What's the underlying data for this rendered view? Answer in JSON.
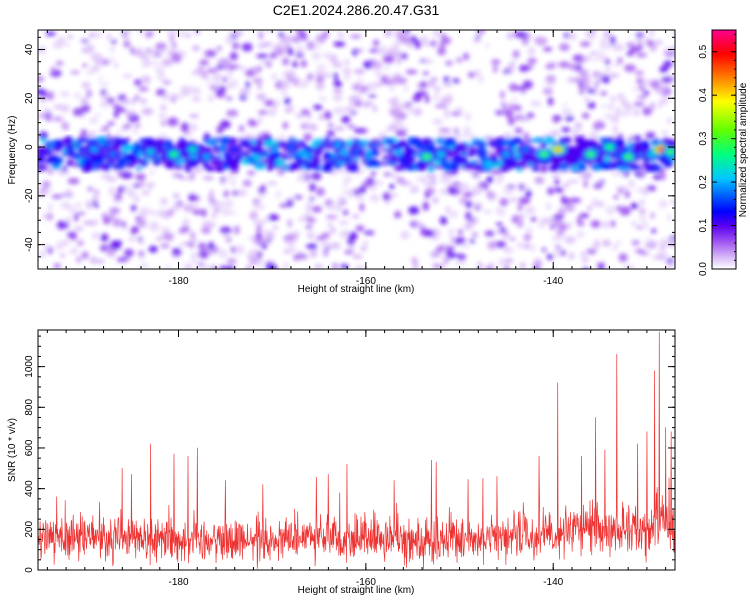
{
  "title": "C2E1.2024.286.20.47.G31",
  "chart_data": [
    {
      "type": "heatmap",
      "xlabel": "Height of straight line (km)",
      "ylabel": "Frequency (Hz)",
      "xlim": [
        -195,
        -127
      ],
      "ylim": [
        -50,
        48
      ],
      "xticks": [
        -180,
        -160,
        -140
      ],
      "yticks": [
        -40,
        -20,
        0,
        20,
        40
      ],
      "colorbar": {
        "label": "Normalized spectral amplitude",
        "range": [
          0.0,
          0.55
        ],
        "ticks": [
          0.0,
          0.1,
          0.2,
          0.3,
          0.4,
          0.5
        ],
        "colors": [
          "#ffffff",
          "#d8b8f8",
          "#9a4cf0",
          "#5a00f0",
          "#0000ff",
          "#00c8ff",
          "#00ff80",
          "#60ff00",
          "#ffff00",
          "#ff8000",
          "#ff0000",
          "#ff0090"
        ]
      },
      "band": {
        "center_hz": -3,
        "half_width_hz": 6
      },
      "hotspots": [
        {
          "x": -189,
          "y": -1,
          "amp": 0.2
        },
        {
          "x": -187,
          "y": -3,
          "amp": 0.18
        },
        {
          "x": -183,
          "y": -2,
          "amp": 0.22
        },
        {
          "x": -180.5,
          "y": -3,
          "amp": 0.28
        },
        {
          "x": -178.5,
          "y": -1,
          "amp": 0.24
        },
        {
          "x": -177,
          "y": -4,
          "amp": 0.2
        },
        {
          "x": -174,
          "y": -1,
          "amp": 0.15
        },
        {
          "x": -168,
          "y": 0,
          "amp": 0.17
        },
        {
          "x": -163,
          "y": 1,
          "amp": 0.2
        },
        {
          "x": -161,
          "y": -2,
          "amp": 0.17
        },
        {
          "x": -153.5,
          "y": -4,
          "amp": 0.3
        },
        {
          "x": -152,
          "y": -3,
          "amp": 0.22
        },
        {
          "x": -145,
          "y": -3,
          "amp": 0.2
        },
        {
          "x": -143,
          "y": -1,
          "amp": 0.18
        },
        {
          "x": -141,
          "y": -3,
          "amp": 0.3
        },
        {
          "x": -139.5,
          "y": -1,
          "amp": 0.42
        },
        {
          "x": -136,
          "y": -3,
          "amp": 0.3
        },
        {
          "x": -134,
          "y": 0,
          "amp": 0.28
        },
        {
          "x": -132,
          "y": -4,
          "amp": 0.3
        },
        {
          "x": -129.5,
          "y": -3,
          "amp": 0.22
        },
        {
          "x": -128.5,
          "y": -1,
          "amp": 0.5
        },
        {
          "x": -127.5,
          "y": -2,
          "amp": 0.3
        }
      ]
    },
    {
      "type": "line",
      "xlabel": "Height of straight line (km)",
      "ylabel": "SNR (10 * v/v)",
      "xlim": [
        -195,
        -127
      ],
      "ylim": [
        0,
        1180
      ],
      "xticks": [
        -180,
        -160,
        -140
      ],
      "yticks": [
        0,
        200,
        400,
        600,
        800,
        1000
      ],
      "color": "#ee3333",
      "baseline": 150,
      "noise": 100,
      "spikes": [
        {
          "x": -193,
          "y": 360
        },
        {
          "x": -186,
          "y": 500
        },
        {
          "x": -185,
          "y": 470
        },
        {
          "x": -183,
          "y": 620
        },
        {
          "x": -180.5,
          "y": 570
        },
        {
          "x": -179,
          "y": 560
        },
        {
          "x": -178,
          "y": 600
        },
        {
          "x": -175,
          "y": 440
        },
        {
          "x": -171,
          "y": 420
        },
        {
          "x": -164,
          "y": 470
        },
        {
          "x": -162,
          "y": 520
        },
        {
          "x": -157,
          "y": 440
        },
        {
          "x": -153,
          "y": 540
        },
        {
          "x": -152.5,
          "y": 530
        },
        {
          "x": -147.5,
          "y": 450
        },
        {
          "x": -146,
          "y": 460
        },
        {
          "x": -141.5,
          "y": 560
        },
        {
          "x": -139.5,
          "y": 920
        },
        {
          "x": -137,
          "y": 560
        },
        {
          "x": -135.5,
          "y": 750
        },
        {
          "x": -134.5,
          "y": 590
        },
        {
          "x": -133.2,
          "y": 1060
        },
        {
          "x": -131,
          "y": 620
        },
        {
          "x": -130,
          "y": 680
        },
        {
          "x": -129.2,
          "y": 980
        },
        {
          "x": -128.7,
          "y": 1170
        },
        {
          "x": -128,
          "y": 700
        },
        {
          "x": -127.4,
          "y": 680
        }
      ]
    }
  ]
}
